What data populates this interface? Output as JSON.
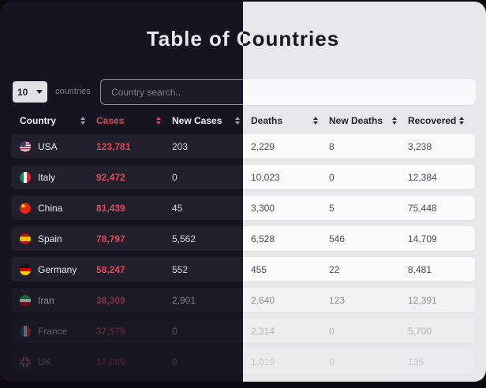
{
  "title": "Table of Countries",
  "controls": {
    "page_size": "10",
    "page_size_label": "countries",
    "search_placeholder": "Country search.."
  },
  "table": {
    "columns": [
      {
        "label": "Country"
      },
      {
        "label": "Cases"
      },
      {
        "label": "New Cases"
      },
      {
        "label": "Deaths"
      },
      {
        "label": "New Deaths"
      },
      {
        "label": "Recovered"
      }
    ],
    "rows": [
      {
        "country": "USA",
        "flag_class": "flag flag-usa",
        "cases": "123,781",
        "new_cases": "203",
        "deaths": "2,229",
        "new_deaths": "8",
        "recovered": "3,238"
      },
      {
        "country": "Italy",
        "flag_class": "flag flag-italy",
        "cases": "92,472",
        "new_cases": "0",
        "deaths": "10,023",
        "new_deaths": "0",
        "recovered": "12,384"
      },
      {
        "country": "China",
        "flag_class": "flag flag-china",
        "cases": "81,439",
        "new_cases": "45",
        "deaths": "3,300",
        "new_deaths": "5",
        "recovered": "75,448"
      },
      {
        "country": "Spain",
        "flag_class": "flag flag-spain",
        "cases": "78,797",
        "new_cases": "5,562",
        "deaths": "6,528",
        "new_deaths": "546",
        "recovered": "14,709"
      },
      {
        "country": "Germany",
        "flag_class": "flag flag-germany",
        "cases": "58,247",
        "new_cases": "552",
        "deaths": "455",
        "new_deaths": "22",
        "recovered": "8,481"
      },
      {
        "country": "Iran",
        "flag_class": "flag flag-iran",
        "cases": "38,309",
        "new_cases": "2,901",
        "deaths": "2,640",
        "new_deaths": "123",
        "recovered": "12,391"
      },
      {
        "country": "France",
        "flag_class": "flag flag-france",
        "cases": "37,575",
        "new_cases": "0",
        "deaths": "2,314",
        "new_deaths": "0",
        "recovered": "5,700"
      },
      {
        "country": "UK",
        "flag_class": "flag flag-uk",
        "cases": "17,089",
        "new_cases": "0",
        "deaths": "1,019",
        "new_deaths": "0",
        "recovered": "135"
      }
    ]
  },
  "colors": {
    "accent_red": "#e0475a",
    "dark_bg": "#171421",
    "light_bg": "#e8e7e9"
  }
}
